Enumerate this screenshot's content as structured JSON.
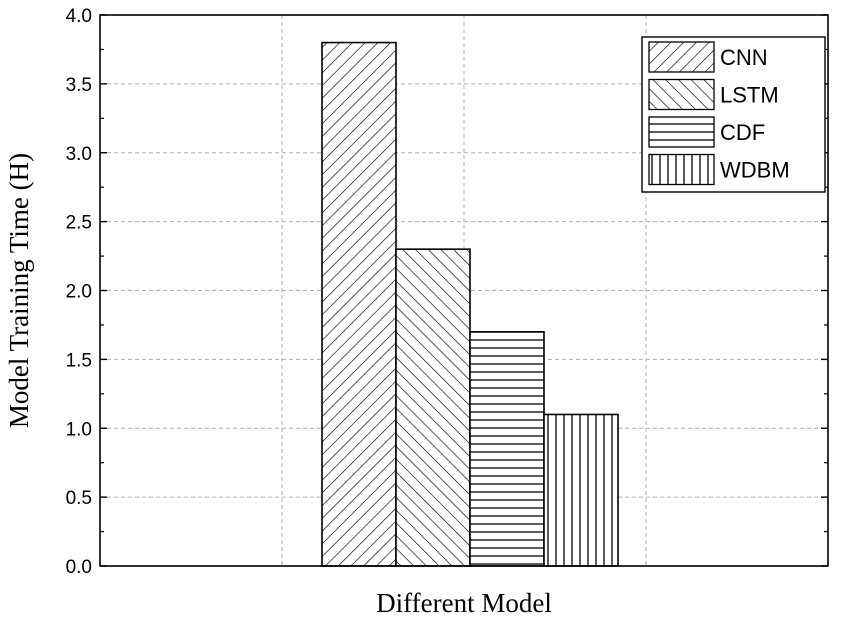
{
  "chart_data": {
    "type": "bar",
    "title": "",
    "xlabel": "Different Model",
    "ylabel": "Model Training Time (H)",
    "ylim": [
      0,
      4
    ],
    "yticks": [
      "0.0",
      "0.5",
      "1.0",
      "1.5",
      "2.0",
      "2.5",
      "3.0",
      "3.5",
      "4.0"
    ],
    "grid": true,
    "legend_position": "top-right",
    "series": [
      {
        "name": "CNN",
        "values": [
          3.8
        ],
        "pattern": "diagonal-up"
      },
      {
        "name": "LSTM",
        "values": [
          2.3
        ],
        "pattern": "diagonal-down"
      },
      {
        "name": "CDF",
        "values": [
          1.7
        ],
        "pattern": "horizontal"
      },
      {
        "name": "WDBM",
        "values": [
          1.1
        ],
        "pattern": "vertical"
      }
    ],
    "colors": {
      "bar_fill": "#ffffff",
      "bar_stroke": "#000000",
      "grid": "#b0b0b0"
    }
  }
}
